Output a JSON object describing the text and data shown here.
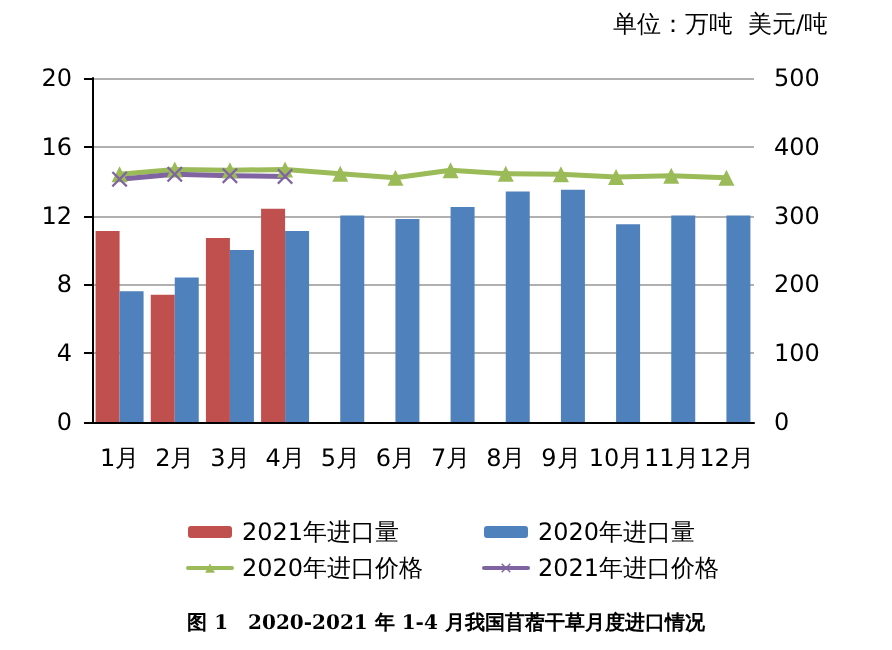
{
  "chart_data": {
    "type": "bar",
    "categories": [
      "1月",
      "2月",
      "3月",
      "4月",
      "5月",
      "6月",
      "7月",
      "8月",
      "9月",
      "10月",
      "11月",
      "12月"
    ],
    "series": [
      {
        "name": "2021年进口量",
        "color": "#c0504d",
        "values": [
          11.1,
          7.4,
          10.7,
          12.4,
          null,
          null,
          null,
          null,
          null,
          null,
          null,
          null
        ]
      },
      {
        "name": "2020年进口量",
        "color": "#4f81bd",
        "values": [
          7.6,
          8.4,
          10.0,
          11.1,
          12.0,
          11.8,
          12.5,
          13.4,
          13.5,
          11.5,
          12.0,
          12.0
        ]
      },
      {
        "name": "2020年进口价格",
        "type": "line",
        "axis": "y2",
        "marker": "triangle",
        "color": "#9bbb59",
        "values": [
          360,
          367,
          366,
          367,
          361,
          355,
          366,
          361,
          360,
          356,
          358,
          355
        ]
      },
      {
        "name": "2021年进口价格",
        "type": "line",
        "axis": "y2",
        "marker": "cross",
        "color": "#8064a2",
        "values": [
          353,
          360,
          358,
          357,
          null,
          null,
          null,
          null,
          null,
          null,
          null,
          null
        ]
      }
    ],
    "ylim": [
      0,
      20
    ],
    "yticks": [
      0,
      4,
      8,
      12,
      16,
      20
    ],
    "y2lim": [
      0,
      500
    ],
    "y2ticks": [
      0,
      100,
      200,
      300,
      400,
      500
    ],
    "grid": "y",
    "legend": "bottom",
    "annotations": [
      "单位：万吨  美元/吨",
      "图 1　2020-2021 年 1-4 月我国苜蓿干草月度进口情况"
    ]
  }
}
